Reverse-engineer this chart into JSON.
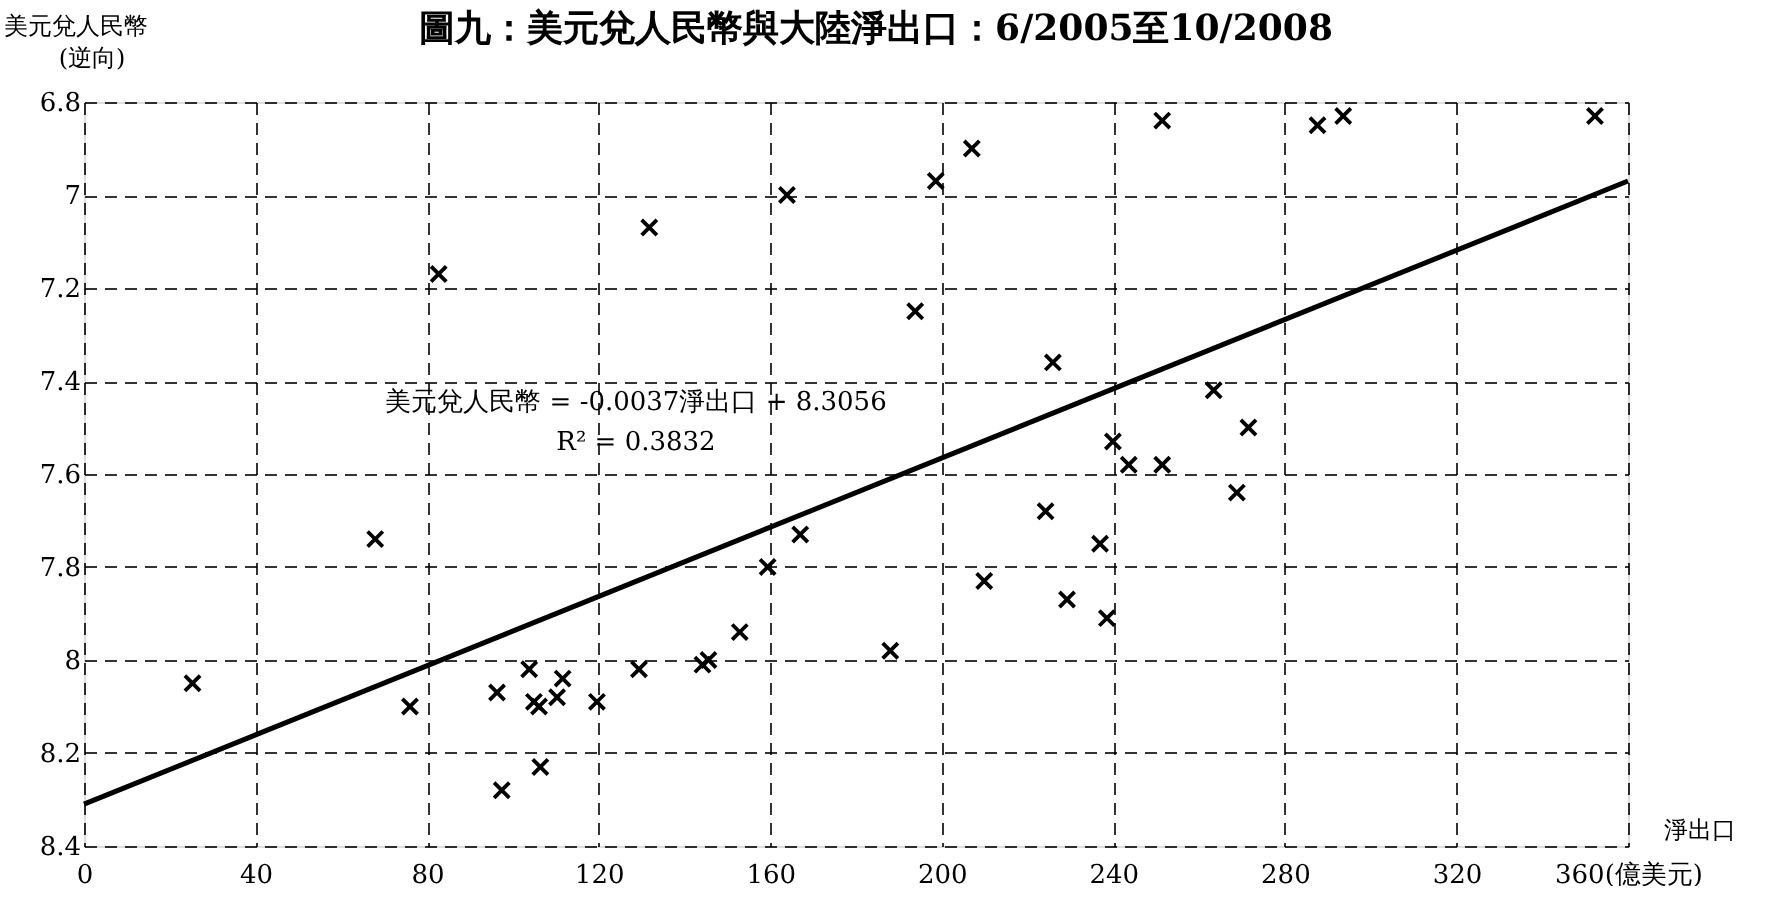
{
  "chart_data": {
    "type": "scatter",
    "title": "圖九：美元兌人民幣與大陸淨出口：6/2005至10/2008",
    "xlabel": "淨出口",
    "ylabel": "美元兌人民幣\n(逆向)",
    "x": [
      82.7,
      131.8,
      163.9,
      198.6,
      207,
      193.8,
      225.9,
      239.9,
      243.6,
      251.4,
      287.6,
      293.6,
      352.3,
      263.4,
      271.5,
      251.4,
      268.8,
      25.3,
      67.9,
      76,
      96.3,
      97.4,
      103.8,
      104.9,
      106.1,
      110.3,
      111.6,
      106.4,
      119.6,
      129.4,
      144.2,
      145.6,
      152.9,
      159.4,
      167,
      188,
      209.9,
      224.2,
      229.2,
      236.9,
      238.5
    ],
    "values": [
      7.17,
      7.07,
      7.0,
      6.97,
      6.9,
      7.25,
      7.36,
      7.53,
      7.58,
      6.84,
      6.85,
      6.83,
      6.83,
      7.42,
      7.5,
      7.58,
      7.64,
      8.05,
      7.74,
      8.1,
      8.07,
      8.28,
      8.02,
      8.09,
      8.1,
      8.08,
      8.04,
      8.23,
      8.09,
      8.02,
      8.01,
      8.0,
      7.94,
      7.8,
      7.73,
      7.98,
      7.83,
      7.68,
      7.87,
      7.75,
      7.91
    ],
    "marker": "cross",
    "color": "#000000",
    "series": [
      {
        "type": "line",
        "x": [
          0,
          360
        ],
        "values": [
          8.31,
          6.97
        ],
        "color": "#000000",
        "line_style": "solid",
        "marker": "none"
      }
    ],
    "xlim": [
      0,
      360
    ],
    "xticks": [
      0,
      40,
      80,
      120,
      160,
      200,
      240,
      280,
      320,
      {
        "value": 360,
        "label": "360(億美元)"
      }
    ],
    "ylim": [
      8.4,
      6.8
    ],
    "yticks": [
      6.8,
      7,
      7.2,
      7.4,
      7.6,
      7.8,
      8,
      8.2,
      8.4
    ],
    "grid": true,
    "annotations": [
      "美元兌人民幣 = -0.0037淨出口 + 8.3056",
      "R² = 0.3832"
    ]
  }
}
